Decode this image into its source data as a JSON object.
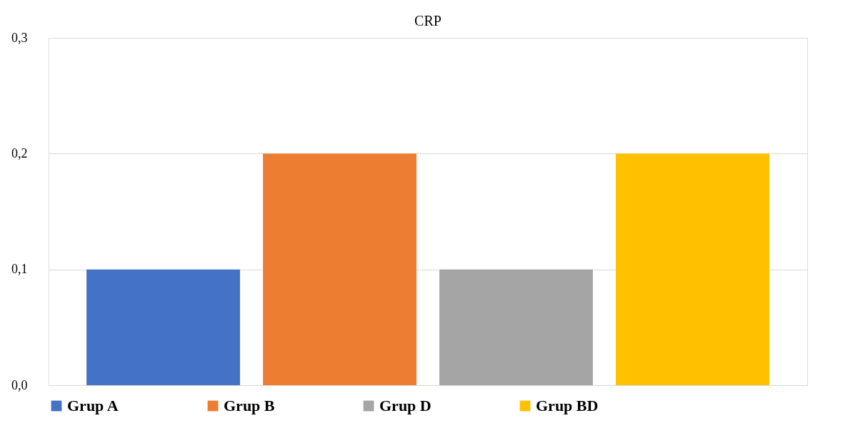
{
  "chart_data": {
    "type": "bar",
    "title": "CRP",
    "categories": [
      null
    ],
    "series": [
      {
        "name": "Grup A",
        "color": "#4472c4",
        "values": [
          0.1
        ]
      },
      {
        "name": "Grup B",
        "color": "#ed7d31",
        "values": [
          0.2
        ]
      },
      {
        "name": "Grup D",
        "color": "#a5a5a5",
        "values": [
          0.1
        ]
      },
      {
        "name": "Grup BD",
        "color": "#ffc000",
        "values": [
          0.2
        ]
      }
    ],
    "ylim": [
      0,
      0.3
    ],
    "yticks": [
      {
        "value": 0,
        "label": "0,0"
      },
      {
        "value": 0.1,
        "label": "0,1"
      },
      {
        "value": 0.2,
        "label": "0,2"
      },
      {
        "value": 0.3,
        "label": "0,3"
      }
    ],
    "grid": "y",
    "legend": "bottom",
    "tick_labels": "y"
  }
}
